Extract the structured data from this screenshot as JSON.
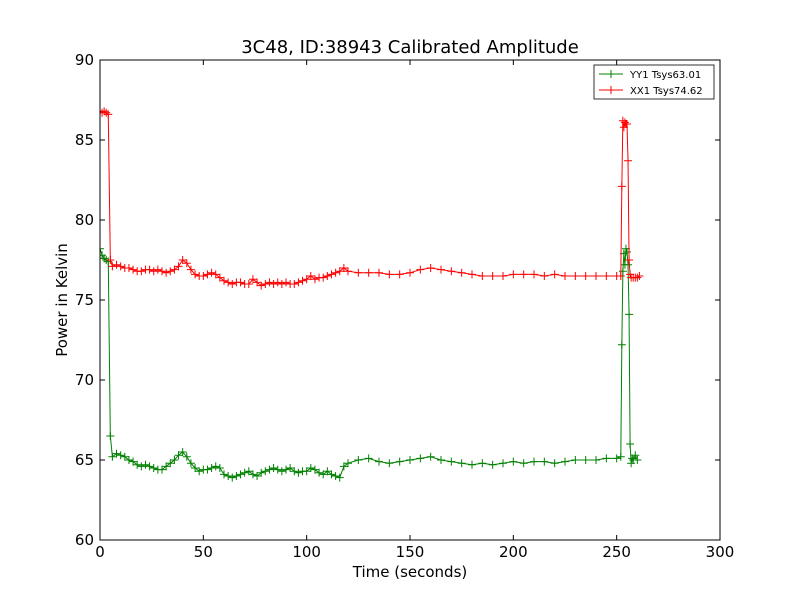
{
  "chart_data": {
    "type": "line",
    "title": "3C48, ID:38943 Calibrated Amplitude",
    "xlabel": "Time (seconds)",
    "ylabel": "Power in Kelvin",
    "xlim": [
      0,
      300
    ],
    "ylim": [
      60,
      90
    ],
    "xticks": [
      0,
      50,
      100,
      150,
      200,
      250,
      300
    ],
    "yticks": [
      60,
      65,
      70,
      75,
      80,
      85,
      90
    ],
    "grid": false,
    "legend_position": "top-right",
    "marker": "+",
    "series": [
      {
        "name": "YY1 Tsys63.01",
        "color": "#008000",
        "x": [
          0,
          1,
          2,
          3,
          4,
          5,
          6,
          8,
          10,
          12,
          14,
          16,
          18,
          20,
          22,
          24,
          26,
          28,
          30,
          32,
          34,
          36,
          38,
          40,
          42,
          44,
          46,
          48,
          50,
          52,
          54,
          56,
          58,
          60,
          62,
          64,
          66,
          68,
          70,
          72,
          74,
          76,
          78,
          80,
          82,
          84,
          86,
          88,
          90,
          92,
          94,
          96,
          98,
          100,
          102,
          104,
          106,
          108,
          110,
          112,
          114,
          116,
          118,
          120,
          125,
          130,
          135,
          140,
          145,
          150,
          155,
          160,
          165,
          170,
          175,
          180,
          185,
          190,
          195,
          200,
          205,
          210,
          215,
          220,
          225,
          230,
          235,
          240,
          245,
          250,
          252,
          252.5,
          253,
          253.5,
          254,
          254.5,
          255,
          255.5,
          256,
          256.5,
          257,
          257.5,
          258,
          259,
          260
        ],
        "y": [
          78.2,
          77.8,
          77.6,
          77.5,
          77.4,
          66.5,
          65.2,
          65.4,
          65.3,
          65.2,
          65.0,
          64.9,
          64.7,
          64.6,
          64.7,
          64.6,
          64.5,
          64.4,
          64.4,
          64.6,
          64.8,
          65.0,
          65.3,
          65.5,
          65.2,
          64.8,
          64.5,
          64.3,
          64.4,
          64.4,
          64.5,
          64.6,
          64.5,
          64.1,
          64.0,
          63.9,
          64.0,
          64.1,
          64.2,
          64.3,
          64.1,
          64.0,
          64.2,
          64.3,
          64.4,
          64.5,
          64.4,
          64.3,
          64.4,
          64.5,
          64.3,
          64.2,
          64.3,
          64.3,
          64.5,
          64.4,
          64.2,
          64.1,
          64.3,
          64.1,
          64.0,
          63.9,
          64.6,
          64.8,
          65.0,
          65.1,
          64.9,
          64.8,
          64.9,
          65.0,
          65.1,
          65.2,
          65.0,
          64.9,
          64.8,
          64.7,
          64.8,
          64.7,
          64.8,
          64.9,
          64.8,
          64.9,
          64.9,
          64.8,
          64.9,
          65.0,
          65.0,
          65.0,
          65.1,
          65.1,
          65.2,
          72.2,
          76.8,
          77.9,
          77.2,
          78.2,
          78.0,
          77.2,
          74.1,
          66.0,
          64.8,
          65.1,
          65.0,
          65.3,
          65.0
        ]
      },
      {
        "name": "XX1 Tsys74.62",
        "color": "#ff0000",
        "x": [
          0,
          1,
          2,
          3,
          4,
          5,
          6,
          8,
          10,
          12,
          14,
          16,
          18,
          20,
          22,
          24,
          26,
          28,
          30,
          32,
          34,
          36,
          38,
          40,
          42,
          44,
          46,
          48,
          50,
          52,
          54,
          56,
          58,
          60,
          62,
          64,
          66,
          68,
          70,
          72,
          74,
          76,
          78,
          80,
          82,
          84,
          86,
          88,
          90,
          92,
          94,
          96,
          98,
          100,
          102,
          104,
          106,
          108,
          110,
          112,
          114,
          116,
          118,
          120,
          125,
          130,
          135,
          140,
          145,
          150,
          155,
          160,
          165,
          170,
          175,
          180,
          185,
          190,
          195,
          200,
          205,
          210,
          215,
          220,
          225,
          230,
          235,
          240,
          245,
          250,
          252,
          252.5,
          253,
          253.5,
          254,
          254.5,
          255,
          255.5,
          256,
          256.5,
          257,
          258,
          259,
          260,
          261
        ],
        "y": [
          86.8,
          86.7,
          86.8,
          86.7,
          86.6,
          77.5,
          77.1,
          77.2,
          77.1,
          77.0,
          77.0,
          76.9,
          76.8,
          76.8,
          76.9,
          76.9,
          76.8,
          76.9,
          76.8,
          76.7,
          76.8,
          76.9,
          77.1,
          77.5,
          77.3,
          76.9,
          76.6,
          76.5,
          76.5,
          76.6,
          76.7,
          76.6,
          76.4,
          76.2,
          76.1,
          76.0,
          76.1,
          76.1,
          76.0,
          76.0,
          76.3,
          76.1,
          75.9,
          76.0,
          76.1,
          76.0,
          76.1,
          76.0,
          76.1,
          76.0,
          76.0,
          76.1,
          76.2,
          76.3,
          76.5,
          76.3,
          76.4,
          76.4,
          76.5,
          76.6,
          76.7,
          76.8,
          77.0,
          76.8,
          76.7,
          76.7,
          76.7,
          76.6,
          76.6,
          76.7,
          76.9,
          77.0,
          76.9,
          76.8,
          76.7,
          76.6,
          76.5,
          76.5,
          76.5,
          76.6,
          76.6,
          76.6,
          76.5,
          76.6,
          76.5,
          76.5,
          76.5,
          76.5,
          76.5,
          76.5,
          76.5,
          82.1,
          86.2,
          85.8,
          86.1,
          86.0,
          86.0,
          83.7,
          77.5,
          76.6,
          76.4,
          76.4,
          76.4,
          76.4,
          76.5
        ]
      }
    ]
  }
}
